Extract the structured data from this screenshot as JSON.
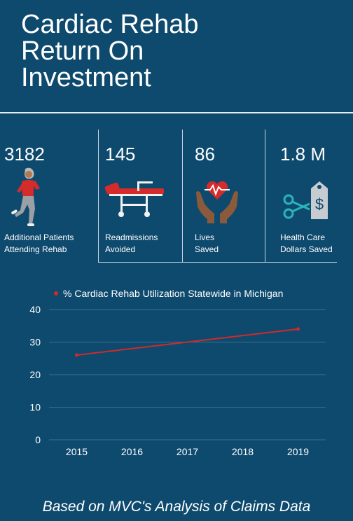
{
  "title_lines": [
    "Cardiac Rehab",
    "Return On",
    "Investment"
  ],
  "stats": [
    {
      "value": "3182",
      "label_lines": [
        "Additional Patients",
        "Attending Rehab"
      ],
      "icon": "runner-icon"
    },
    {
      "value": "145",
      "label_lines": [
        "Readmissions",
        "Avoided"
      ],
      "icon": "hospital-bed-icon"
    },
    {
      "value": "86",
      "label_lines": [
        "Lives",
        "Saved"
      ],
      "icon": "hands-heart-icon"
    },
    {
      "value": "1.8 M",
      "label_lines": [
        "Health Care",
        "Dollars Saved"
      ],
      "icon": "scissors-price-tag-icon"
    }
  ],
  "colors": {
    "background": "#0e4a6e",
    "series": "#d12a2a",
    "grid": "#3f6f8f",
    "text": "#ffffff"
  },
  "chart_data": {
    "type": "line",
    "x": [
      "2015",
      "2016",
      "2017",
      "2018",
      "2019"
    ],
    "series": [
      {
        "name": "% Cardiac Rehab Utilization Statewide in Michigan",
        "values": [
          26,
          28,
          30,
          32,
          34
        ]
      }
    ],
    "ylim": [
      0,
      40
    ],
    "yticks": [
      0,
      10,
      20,
      30,
      40
    ],
    "grid": true,
    "legend": "top"
  },
  "footer": "Based on MVC's Analysis of Claims Data"
}
